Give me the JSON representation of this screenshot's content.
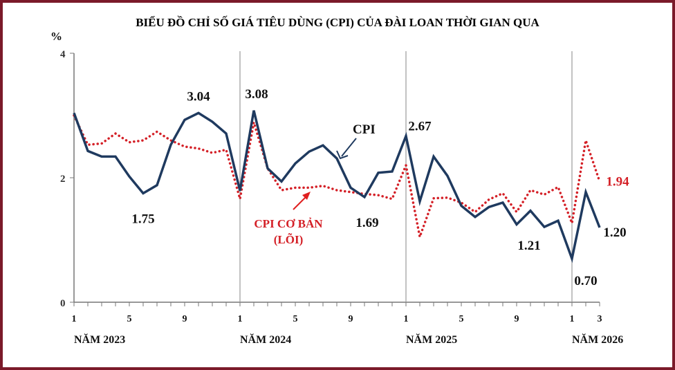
{
  "chart_data": {
    "type": "line",
    "title": "BIỂU ĐỒ CHỈ SỐ GIÁ TIÊU DÙNG (CPI) CỦA ĐÀI LOAN THỜI GIAN QUA",
    "ylabel": "%",
    "ylim": [
      0,
      4
    ],
    "yticks": [
      "0",
      "2",
      "4"
    ],
    "ytick_values": [
      0,
      2,
      4
    ],
    "xtick_labels": [
      "1",
      "5",
      "9",
      "1",
      "5",
      "9",
      "1",
      "5",
      "9",
      "1",
      "3"
    ],
    "xtick_indices": [
      0,
      4,
      8,
      12,
      16,
      20,
      24,
      28,
      32,
      36,
      38
    ],
    "year_labels": [
      {
        "text": "NĂM 2023",
        "index": 0
      },
      {
        "text": "NĂM 2024",
        "index": 12
      },
      {
        "text": "NĂM 2025",
        "index": 24
      },
      {
        "text": "NĂM 2026",
        "index": 36
      }
    ],
    "year_dividers": [
      12,
      24,
      36
    ],
    "series": [
      {
        "name": "CPI",
        "color": "#1f3a5f",
        "style": "solid",
        "values": [
          3.04,
          2.43,
          2.34,
          2.34,
          2.02,
          1.75,
          1.88,
          2.53,
          2.93,
          3.04,
          2.9,
          2.71,
          1.79,
          3.08,
          2.15,
          1.94,
          2.23,
          2.42,
          2.52,
          2.31,
          1.84,
          1.69,
          2.08,
          2.1,
          2.67,
          1.62,
          2.34,
          2.03,
          1.55,
          1.37,
          1.53,
          1.6,
          1.25,
          1.47,
          1.21,
          1.31,
          0.7,
          1.77,
          1.2
        ]
      },
      {
        "name": "CPI CƠ BẢN (LÕI)",
        "color": "#d42027",
        "style": "dotted",
        "values": [
          3.0,
          2.53,
          2.55,
          2.71,
          2.57,
          2.6,
          2.74,
          2.6,
          2.5,
          2.47,
          2.4,
          2.45,
          1.66,
          2.89,
          2.15,
          1.8,
          1.84,
          1.84,
          1.87,
          1.8,
          1.77,
          1.74,
          1.72,
          1.66,
          2.2,
          1.05,
          1.67,
          1.68,
          1.6,
          1.45,
          1.65,
          1.75,
          1.45,
          1.8,
          1.73,
          1.85,
          1.27,
          2.6,
          1.94
        ]
      }
    ],
    "annotations": [
      {
        "text": "3.04",
        "series": 0,
        "index": 9,
        "color": "#111"
      },
      {
        "text": "1.75",
        "series": 0,
        "index": 5,
        "color": "#111"
      },
      {
        "text": "3.08",
        "series": 0,
        "index": 13,
        "color": "#111"
      },
      {
        "text": "1.69",
        "series": 0,
        "index": 21,
        "color": "#111"
      },
      {
        "text": "2.67",
        "series": 0,
        "index": 24,
        "color": "#111"
      },
      {
        "text": "1.21",
        "series": 0,
        "index": 34,
        "color": "#111"
      },
      {
        "text": "0.70",
        "series": 0,
        "index": 36,
        "color": "#111"
      },
      {
        "text": "1.20",
        "series": 0,
        "index": 38,
        "color": "#111"
      },
      {
        "text": "1.94",
        "series": 1,
        "index": 38,
        "color": "#d42027"
      }
    ],
    "legend_callouts": [
      {
        "text": "CPI",
        "series": 0
      },
      {
        "text": "CPI CƠ BẢN",
        "text2": "(LÕI)",
        "series": 1
      }
    ],
    "grid": false
  }
}
